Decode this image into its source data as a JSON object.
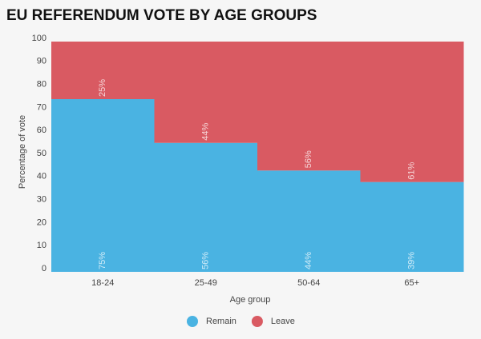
{
  "chart_data": {
    "type": "stacked-bar",
    "title": "EU REFERENDUM VOTE BY AGE GROUPS",
    "x_label": "Age group",
    "y_label": "Percentage of vote",
    "categories": [
      "18-24",
      "25-49",
      "50-64",
      "65+"
    ],
    "series": [
      {
        "name": "Remain",
        "color": "#4ab3e2",
        "values": [
          75,
          56,
          44,
          39
        ],
        "value_labels": [
          "75%",
          "56%",
          "44%",
          "39%"
        ]
      },
      {
        "name": "Leave",
        "color": "#d95a62",
        "values": [
          25,
          44,
          56,
          61
        ],
        "value_labels": [
          "25%",
          "44%",
          "56%",
          "61%"
        ]
      }
    ],
    "ylim": [
      0,
      100
    ],
    "yticks": [
      0,
      10,
      20,
      30,
      40,
      50,
      60,
      70,
      80,
      90,
      100
    ]
  }
}
